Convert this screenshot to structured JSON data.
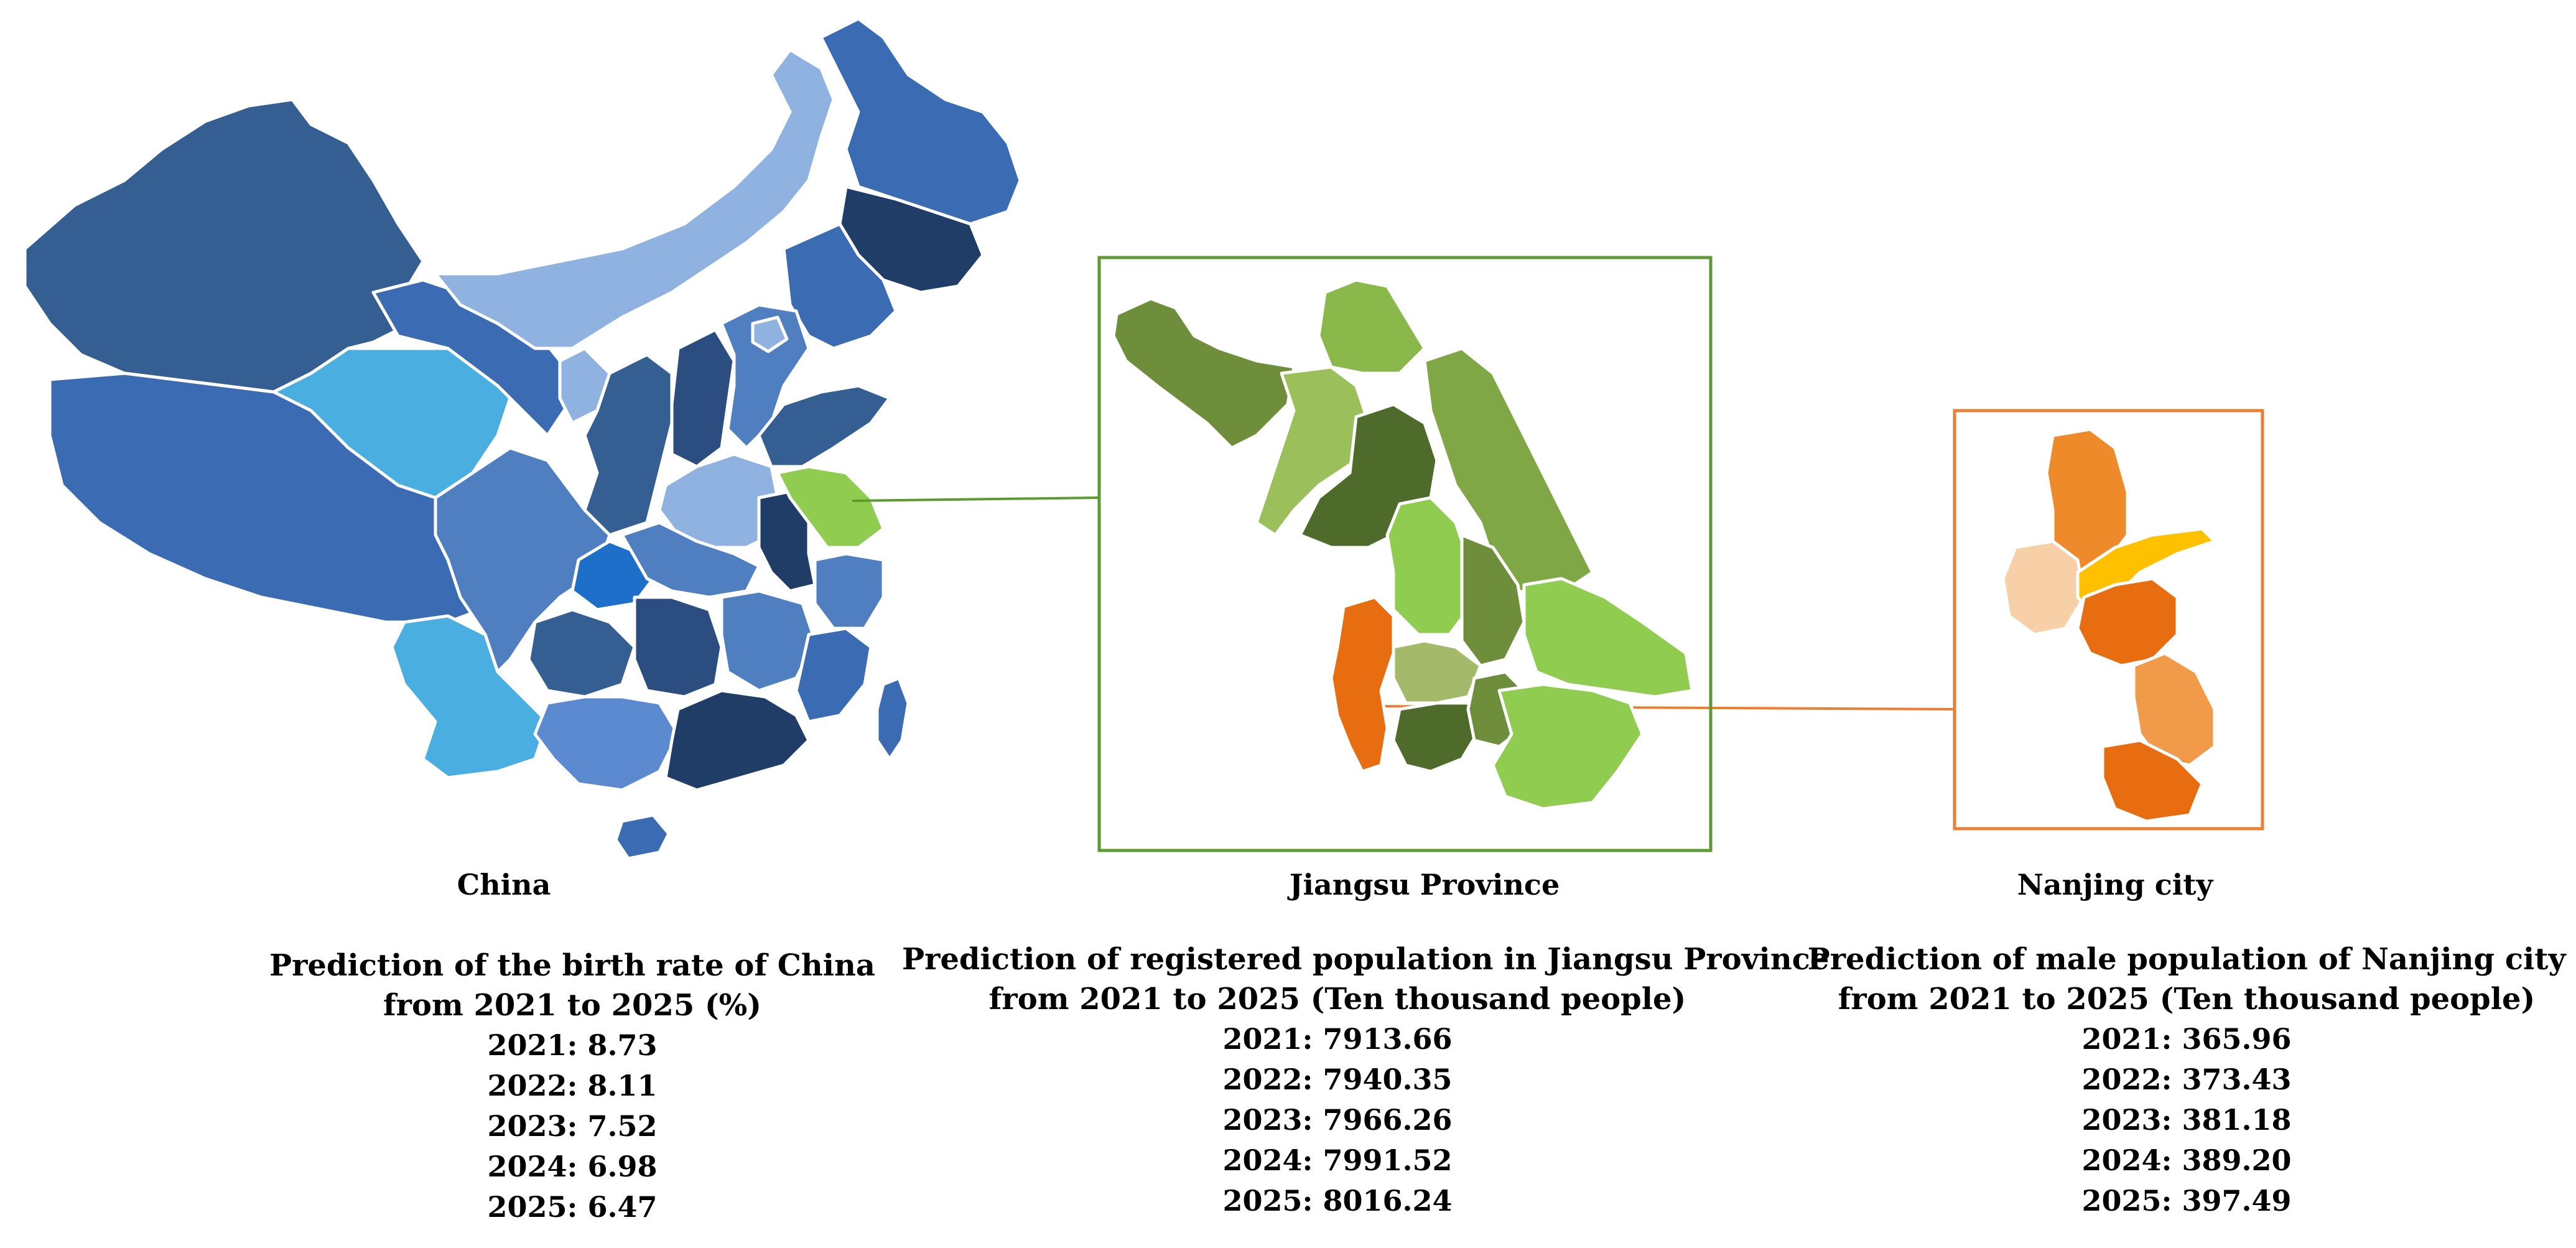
{
  "colors": {
    "china_blues": [
      "#355e93",
      "#3b6cb3",
      "#4f7fc0",
      "#2c4d80",
      "#1f3d66",
      "#8fb2e0",
      "#4aaee0",
      "#1e6fc9",
      "#5b8ad1"
    ],
    "jiangsu_greens": [
      "#6f8e3c",
      "#8ab84a",
      "#9bbf5a",
      "#4f6b2b",
      "#7fa745",
      "#90cc50",
      "#a5b96b"
    ],
    "nanjing_oranges": [
      "#ee8a2a",
      "#e86c10",
      "#f09a4a",
      "#f8d0a8",
      "#ffc000"
    ],
    "china_line": "#5b9b32",
    "jiangsu_frame": "#5b9b32",
    "nanjing_frame": "#ed7d31"
  },
  "labels": {
    "china": "China",
    "jiangsu": "Jiangsu Province",
    "nanjing": "Nanjing city"
  },
  "panels": {
    "china": {
      "title_line1": "Prediction of the birth rate of China",
      "title_line2": "from 2021 to 2025 (%)",
      "rows": [
        "2021: 8.73",
        "2022: 8.11",
        "2023: 7.52",
        "2024: 6.98",
        "2025: 6.47"
      ]
    },
    "jiangsu": {
      "title_line1": "Prediction of registered population in Jiangsu Province",
      "title_line2": "from 2021 to 2025  (Ten thousand people)",
      "rows": [
        "2021: 7913.66",
        "2022: 7940.35",
        "2023: 7966.26",
        "2024: 7991.52",
        "2025: 8016.24"
      ]
    },
    "nanjing": {
      "title_line1": "Prediction of  male population of Nanjing city",
      "title_line2": "from 2021 to 2025 (Ten thousand people)",
      "rows": [
        "2021: 365.96",
        "2022: 373.43",
        "2023: 381.18",
        "2024: 389.20",
        "2025: 397.49"
      ]
    }
  }
}
